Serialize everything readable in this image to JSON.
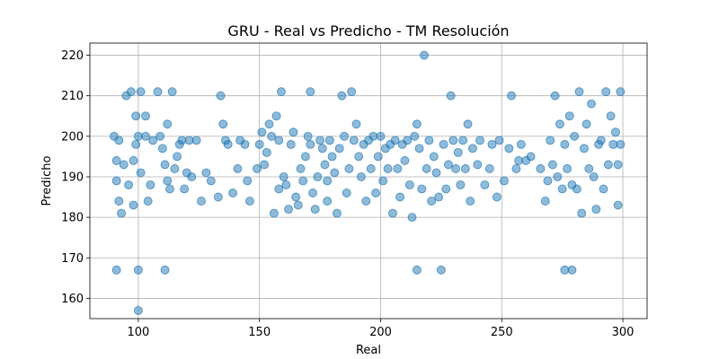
{
  "chart_data": {
    "type": "scatter",
    "title": "GRU - Real vs Predicho - TM Resolución",
    "xlabel": "Real",
    "ylabel": "Predicho",
    "xlim": [
      80,
      310
    ],
    "ylim": [
      155,
      223
    ],
    "xticks": [
      100,
      150,
      200,
      250,
      300
    ],
    "yticks": [
      160,
      170,
      180,
      190,
      200,
      210,
      220
    ],
    "grid": true,
    "point_color": "#1f77b4",
    "point_alpha": 0.5,
    "series": [
      {
        "points": [
          [
            90,
            200
          ],
          [
            91,
            194
          ],
          [
            92,
            199
          ],
          [
            91,
            189
          ],
          [
            91,
            167
          ],
          [
            92,
            184
          ],
          [
            93,
            181
          ],
          [
            94,
            193
          ],
          [
            95,
            210
          ],
          [
            96,
            188
          ],
          [
            97,
            211
          ],
          [
            98,
            183
          ],
          [
            98,
            194
          ],
          [
            99,
            198
          ],
          [
            99,
            205
          ],
          [
            100,
            157
          ],
          [
            100,
            167
          ],
          [
            100,
            200
          ],
          [
            101,
            211
          ],
          [
            101,
            191
          ],
          [
            103,
            200
          ],
          [
            103,
            205
          ],
          [
            104,
            184
          ],
          [
            105,
            188
          ],
          [
            106,
            199
          ],
          [
            108,
            211
          ],
          [
            109,
            200
          ],
          [
            110,
            197
          ],
          [
            111,
            193
          ],
          [
            111,
            167
          ],
          [
            112,
            203
          ],
          [
            112,
            189
          ],
          [
            113,
            187
          ],
          [
            114,
            211
          ],
          [
            115,
            192
          ],
          [
            116,
            195
          ],
          [
            117,
            198
          ],
          [
            118,
            199
          ],
          [
            119,
            187
          ],
          [
            120,
            191
          ],
          [
            121,
            199
          ],
          [
            122,
            190
          ],
          [
            124,
            199
          ],
          [
            126,
            184
          ],
          [
            128,
            191
          ],
          [
            130,
            189
          ],
          [
            133,
            185
          ],
          [
            134,
            210
          ],
          [
            135,
            203
          ],
          [
            136,
            199
          ],
          [
            137,
            198
          ],
          [
            139,
            186
          ],
          [
            141,
            192
          ],
          [
            142,
            199
          ],
          [
            144,
            198
          ],
          [
            145,
            189
          ],
          [
            146,
            184
          ],
          [
            149,
            192
          ],
          [
            150,
            198
          ],
          [
            151,
            201
          ],
          [
            152,
            193
          ],
          [
            153,
            196
          ],
          [
            154,
            203
          ],
          [
            155,
            200
          ],
          [
            156,
            181
          ],
          [
            157,
            205
          ],
          [
            158,
            199
          ],
          [
            158,
            187
          ],
          [
            159,
            211
          ],
          [
            160,
            190
          ],
          [
            161,
            188
          ],
          [
            162,
            182
          ],
          [
            163,
            198
          ],
          [
            164,
            201
          ],
          [
            165,
            185
          ],
          [
            166,
            183
          ],
          [
            167,
            192
          ],
          [
            168,
            189
          ],
          [
            169,
            195
          ],
          [
            170,
            200
          ],
          [
            171,
            198
          ],
          [
            171,
            211
          ],
          [
            172,
            186
          ],
          [
            173,
            182
          ],
          [
            174,
            190
          ],
          [
            175,
            199
          ],
          [
            176,
            197
          ],
          [
            177,
            193
          ],
          [
            178,
            189
          ],
          [
            178,
            184
          ],
          [
            179,
            199
          ],
          [
            180,
            195
          ],
          [
            181,
            191
          ],
          [
            182,
            181
          ],
          [
            183,
            197
          ],
          [
            184,
            210
          ],
          [
            185,
            200
          ],
          [
            186,
            186
          ],
          [
            187,
            192
          ],
          [
            188,
            211
          ],
          [
            189,
            199
          ],
          [
            190,
            203
          ],
          [
            191,
            195
          ],
          [
            192,
            190
          ],
          [
            193,
            198
          ],
          [
            194,
            184
          ],
          [
            195,
            199
          ],
          [
            196,
            192
          ],
          [
            197,
            200
          ],
          [
            198,
            186
          ],
          [
            199,
            195
          ],
          [
            200,
            200
          ],
          [
            201,
            189
          ],
          [
            202,
            197
          ],
          [
            203,
            192
          ],
          [
            204,
            198
          ],
          [
            205,
            181
          ],
          [
            206,
            199
          ],
          [
            207,
            192
          ],
          [
            208,
            185
          ],
          [
            209,
            198
          ],
          [
            210,
            194
          ],
          [
            211,
            199
          ],
          [
            212,
            188
          ],
          [
            213,
            180
          ],
          [
            214,
            200
          ],
          [
            215,
            203
          ],
          [
            215,
            167
          ],
          [
            216,
            197
          ],
          [
            217,
            187
          ],
          [
            218,
            220
          ],
          [
            219,
            192
          ],
          [
            220,
            199
          ],
          [
            221,
            184
          ],
          [
            222,
            195
          ],
          [
            223,
            191
          ],
          [
            224,
            185
          ],
          [
            225,
            167
          ],
          [
            226,
            198
          ],
          [
            227,
            187
          ],
          [
            228,
            193
          ],
          [
            229,
            210
          ],
          [
            230,
            199
          ],
          [
            231,
            192
          ],
          [
            232,
            196
          ],
          [
            233,
            188
          ],
          [
            234,
            199
          ],
          [
            235,
            192
          ],
          [
            236,
            203
          ],
          [
            237,
            184
          ],
          [
            238,
            197
          ],
          [
            240,
            193
          ],
          [
            241,
            199
          ],
          [
            243,
            188
          ],
          [
            245,
            192
          ],
          [
            246,
            198
          ],
          [
            248,
            185
          ],
          [
            249,
            199
          ],
          [
            251,
            189
          ],
          [
            253,
            197
          ],
          [
            254,
            210
          ],
          [
            256,
            192
          ],
          [
            257,
            194
          ],
          [
            258,
            198
          ],
          [
            260,
            194
          ],
          [
            262,
            195
          ],
          [
            266,
            192
          ],
          [
            268,
            184
          ],
          [
            269,
            189
          ],
          [
            270,
            199
          ],
          [
            271,
            193
          ],
          [
            272,
            210
          ],
          [
            273,
            190
          ],
          [
            274,
            203
          ],
          [
            275,
            187
          ],
          [
            276,
            198
          ],
          [
            276,
            167
          ],
          [
            277,
            192
          ],
          [
            278,
            205
          ],
          [
            279,
            167
          ],
          [
            279,
            188
          ],
          [
            280,
            200
          ],
          [
            281,
            187
          ],
          [
            282,
            211
          ],
          [
            283,
            181
          ],
          [
            284,
            197
          ],
          [
            285,
            203
          ],
          [
            286,
            192
          ],
          [
            287,
            208
          ],
          [
            288,
            190
          ],
          [
            289,
            182
          ],
          [
            290,
            198
          ],
          [
            291,
            199
          ],
          [
            292,
            187
          ],
          [
            293,
            211
          ],
          [
            294,
            193
          ],
          [
            295,
            205
          ],
          [
            296,
            198
          ],
          [
            297,
            201
          ],
          [
            298,
            183
          ],
          [
            298,
            193
          ],
          [
            299,
            198
          ],
          [
            299,
            211
          ]
        ]
      }
    ]
  }
}
